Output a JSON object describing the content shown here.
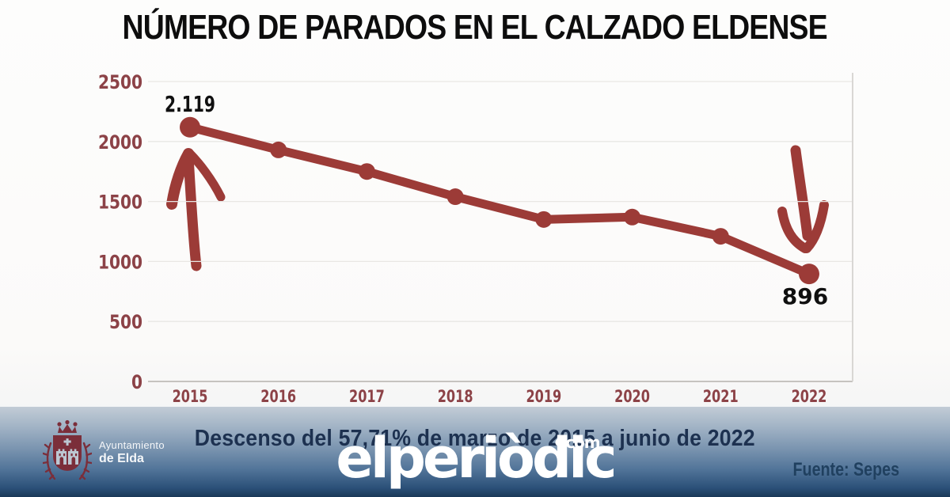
{
  "chart_data": {
    "type": "line",
    "title": "NÚMERO DE PARADOS EN EL CALZADO ELDENSE",
    "categories": [
      "2015",
      "2016",
      "2017",
      "2018",
      "2019",
      "2020",
      "2021",
      "2022"
    ],
    "values": [
      2119,
      1930,
      1750,
      1540,
      1350,
      1370,
      1210,
      896
    ],
    "xlabel": "",
    "ylabel": "",
    "ylim": [
      0,
      2500
    ],
    "yticks": [
      0,
      500,
      1000,
      1500,
      2000,
      2500
    ],
    "grid": true,
    "legend": false,
    "point_labels": [
      {
        "index": 0,
        "text": "2.119",
        "position": "above"
      },
      {
        "index": 7,
        "text": "896",
        "position": "below"
      }
    ],
    "line_color": "#9c3b37",
    "tick_color": "#8c4247",
    "point_label_color": "#101010",
    "grid_color": "#e9e7e4",
    "axis_color": "#c6c3bf"
  },
  "banner": {
    "headline": "Descenso del 57,71% de marzo de 2015 a junio de 2022",
    "source": "Fuente: Sepes",
    "municipality": {
      "line1": "Ayuntamiento",
      "line2": "de Elda"
    },
    "watermark": {
      "text": "elperiòdic",
      "tld": "com"
    },
    "colors": {
      "headline_text": "#1d3150",
      "gradient_top": "#c2ccd6",
      "gradient_bottom": "#193857",
      "crest": "#7b2e3a"
    }
  }
}
